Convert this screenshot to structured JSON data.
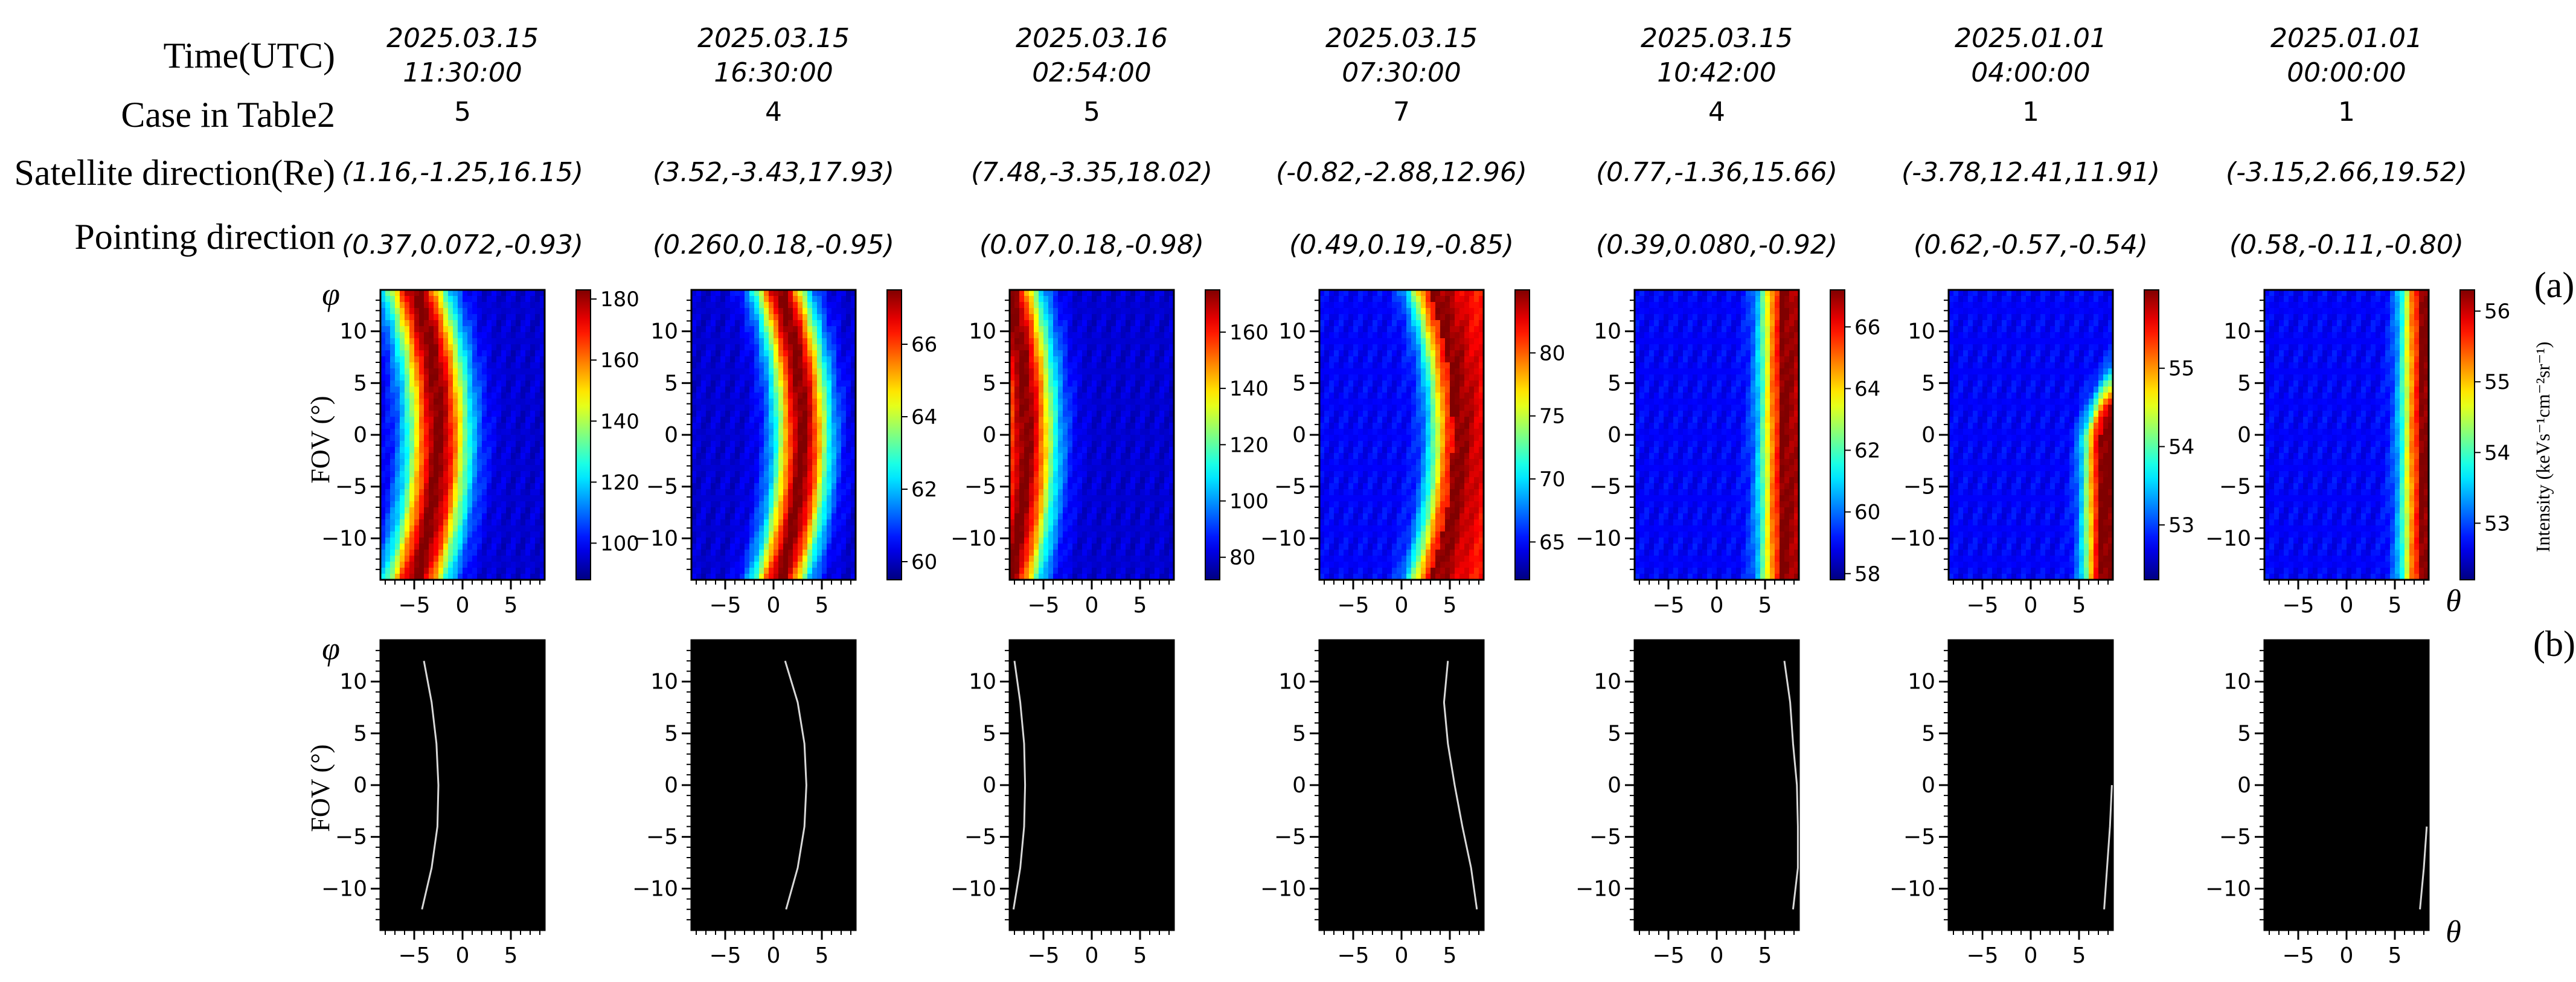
{
  "figure": {
    "row_labels": {
      "time": "Time(UTC)",
      "case": "Case in Table2",
      "satellite": "Satellite direction(Re)",
      "pointing": "Pointing direction"
    },
    "panel_a_label": "(a)",
    "panel_b_label": "(b)",
    "ylabel_symbol": "φ",
    "ylabel_text": "FOV  (°)",
    "xlabel_symbol": "θ",
    "colorbar_label": "Intensity (keVs⁻¹cm⁻²sr⁻¹)",
    "colors": {
      "background": "#ffffff",
      "edge_panel": "#000000",
      "edge_line": "#d8d8d8",
      "colormap": "jet"
    }
  },
  "chart_data": {
    "type": "heatmap",
    "description_axes": {
      "x": "θ (deg)",
      "y": "FOV φ (deg)",
      "xlim": [
        -8.5,
        8.5
      ],
      "ylim": [
        -14,
        14
      ],
      "xticks": [
        -5,
        0,
        5
      ],
      "yticks": [
        -10,
        -5,
        0,
        5,
        10
      ]
    },
    "columns": [
      {
        "date": "2025.03.15",
        "time": "11:30:00",
        "case": "5",
        "satellite": "(1.16,-1.25,16.15)",
        "pointing": "(0.37,0.072,-0.93)",
        "clim": [
          88,
          183
        ],
        "cticks": [
          100,
          120,
          140,
          160,
          180
        ],
        "peak_theta": -2.5,
        "peak_curvature": 0.012,
        "sigma": 2.2,
        "form": "band",
        "edge_theta": [
          -4.0,
          -3.2,
          -2.7,
          -2.5,
          -2.6,
          -3.2,
          -4.2
        ]
      },
      {
        "date": "2025.03.15",
        "time": "16:30:00",
        "case": "4",
        "satellite": "(3.52,-3.43,17.93)",
        "pointing": "(0.260,0.18,-0.95)",
        "clim": [
          59.5,
          67.5
        ],
        "cticks": [
          60,
          62,
          64,
          66
        ],
        "peak_theta": 3.0,
        "peak_curvature": 0.012,
        "sigma": 1.9,
        "form": "band",
        "edge_theta": [
          1.2,
          2.5,
          3.2,
          3.4,
          3.2,
          2.5,
          1.3
        ]
      },
      {
        "date": "2025.03.16",
        "time": "02:54:00",
        "case": "5",
        "satellite": "(7.48,-3.35,18.02)",
        "pointing": "(0.07,0.18,-0.98)",
        "clim": [
          72,
          175
        ],
        "cticks": [
          80,
          100,
          120,
          140,
          160
        ],
        "peak_theta": -6.8,
        "peak_curvature": 0.009,
        "sigma": 2.1,
        "form": "band",
        "edge_theta": [
          -8.0,
          -7.4,
          -7.0,
          -6.9,
          -7.0,
          -7.4,
          -8.1
        ]
      },
      {
        "date": "2025.03.15",
        "time": "07:30:00",
        "case": "7",
        "satellite": "(-0.82,-2.88,12.96)",
        "pointing": "(0.49,0.19,-0.85)",
        "clim": [
          62,
          85
        ],
        "cticks": [
          65,
          70,
          75,
          80
        ],
        "peak_theta": 5.3,
        "peak_curvature": -0.012,
        "sigma": 1.6,
        "form": "edge",
        "edge_theta": [
          4.8,
          4.4,
          4.8,
          5.5,
          6.3,
          7.2,
          7.8
        ]
      },
      {
        "date": "2025.03.15",
        "time": "10:42:00",
        "case": "4",
        "satellite": "(0.77,-1.36,15.66)",
        "pointing": "(0.39,0.080,-0.92)",
        "clim": [
          57.8,
          67.2
        ],
        "cticks": [
          58,
          60,
          62,
          64,
          66
        ],
        "peak_theta": 6.5,
        "peak_curvature": 0.0,
        "sigma": 1.4,
        "form": "edge",
        "edge_theta": [
          7.0,
          7.6,
          7.9,
          8.3,
          8.5,
          8.4,
          7.9
        ]
      },
      {
        "date": "2025.01.01",
        "time": "04:00:00",
        "case": "1",
        "satellite": "(-3.78,12.41,11.91)",
        "pointing": "(0.62,-0.57,-0.54)",
        "clim": [
          52.3,
          56.0
        ],
        "cticks": [
          53,
          54,
          55
        ],
        "peak_theta": 7.2,
        "peak_curvature": 0.0,
        "sigma": 1.2,
        "form": "corner",
        "edge_theta": [
          null,
          null,
          null,
          8.4,
          8.2,
          7.9,
          7.6
        ]
      },
      {
        "date": "2025.01.01",
        "time": "00:00:00",
        "case": "1",
        "satellite": "(-3.15,2.66,19.52)",
        "pointing": "(0.58,-0.11,-0.80)",
        "clim": [
          52.2,
          56.3
        ],
        "cticks": [
          53,
          54,
          55,
          56
        ],
        "peak_theta": 7.5,
        "peak_curvature": 0.0,
        "sigma": 1.3,
        "form": "edge",
        "edge_theta": [
          null,
          null,
          null,
          null,
          8.3,
          8.0,
          7.6
        ]
      }
    ]
  }
}
